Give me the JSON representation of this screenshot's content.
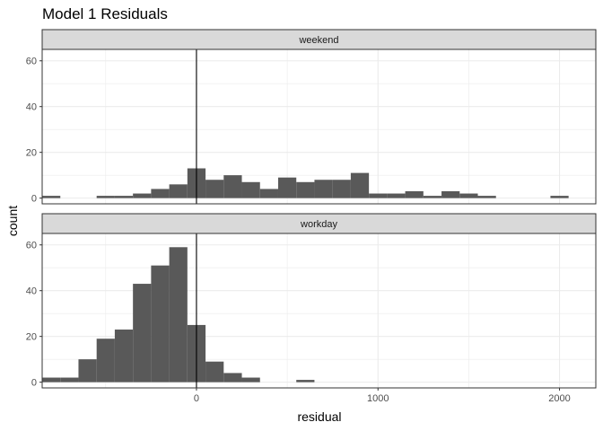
{
  "chart_data": {
    "type": "bar",
    "subtype": "faceted-histogram",
    "title": "Model 1 Residuals",
    "xlabel": "residual",
    "ylabel": "count",
    "xlim": [
      -850,
      2200
    ],
    "ylim": [
      -2.5,
      65
    ],
    "x_ticks": [
      0,
      1000,
      2000
    ],
    "x_tick_labels": [
      "0",
      "1000",
      "2000"
    ],
    "x_minor_ticks": [
      -500,
      500,
      1500
    ],
    "y_ticks": [
      0,
      20,
      40,
      60
    ],
    "y_tick_labels": [
      "0",
      "20",
      "40",
      "60"
    ],
    "y_minor_ticks": [
      10,
      30,
      50
    ],
    "bin_width": 100,
    "vline_x": 0,
    "grid": true,
    "bar_color": "#595959",
    "strip_fill": "#d9d9d9",
    "panel_border_color": "#333333",
    "grid_color": "#ebebeb",
    "facets": [
      {
        "label": "weekend",
        "bins": [
          {
            "x": -800,
            "count": 1
          },
          {
            "x": -500,
            "count": 1
          },
          {
            "x": -400,
            "count": 1
          },
          {
            "x": -300,
            "count": 2
          },
          {
            "x": -200,
            "count": 4
          },
          {
            "x": -100,
            "count": 6
          },
          {
            "x": 0,
            "count": 13
          },
          {
            "x": 100,
            "count": 8
          },
          {
            "x": 200,
            "count": 10
          },
          {
            "x": 300,
            "count": 7
          },
          {
            "x": 400,
            "count": 4
          },
          {
            "x": 500,
            "count": 9
          },
          {
            "x": 600,
            "count": 7
          },
          {
            "x": 700,
            "count": 8
          },
          {
            "x": 800,
            "count": 8
          },
          {
            "x": 900,
            "count": 11
          },
          {
            "x": 1000,
            "count": 2
          },
          {
            "x": 1100,
            "count": 2
          },
          {
            "x": 1200,
            "count": 3
          },
          {
            "x": 1300,
            "count": 1
          },
          {
            "x": 1400,
            "count": 3
          },
          {
            "x": 1500,
            "count": 2
          },
          {
            "x": 1600,
            "count": 1
          },
          {
            "x": 2000,
            "count": 1
          }
        ]
      },
      {
        "label": "workday",
        "bins": [
          {
            "x": -800,
            "count": 2
          },
          {
            "x": -700,
            "count": 2
          },
          {
            "x": -600,
            "count": 10
          },
          {
            "x": -500,
            "count": 19
          },
          {
            "x": -400,
            "count": 23
          },
          {
            "x": -300,
            "count": 43
          },
          {
            "x": -200,
            "count": 51
          },
          {
            "x": -100,
            "count": 59
          },
          {
            "x": 0,
            "count": 25
          },
          {
            "x": 100,
            "count": 9
          },
          {
            "x": 200,
            "count": 4
          },
          {
            "x": 300,
            "count": 2
          },
          {
            "x": 600,
            "count": 1
          }
        ]
      }
    ]
  }
}
